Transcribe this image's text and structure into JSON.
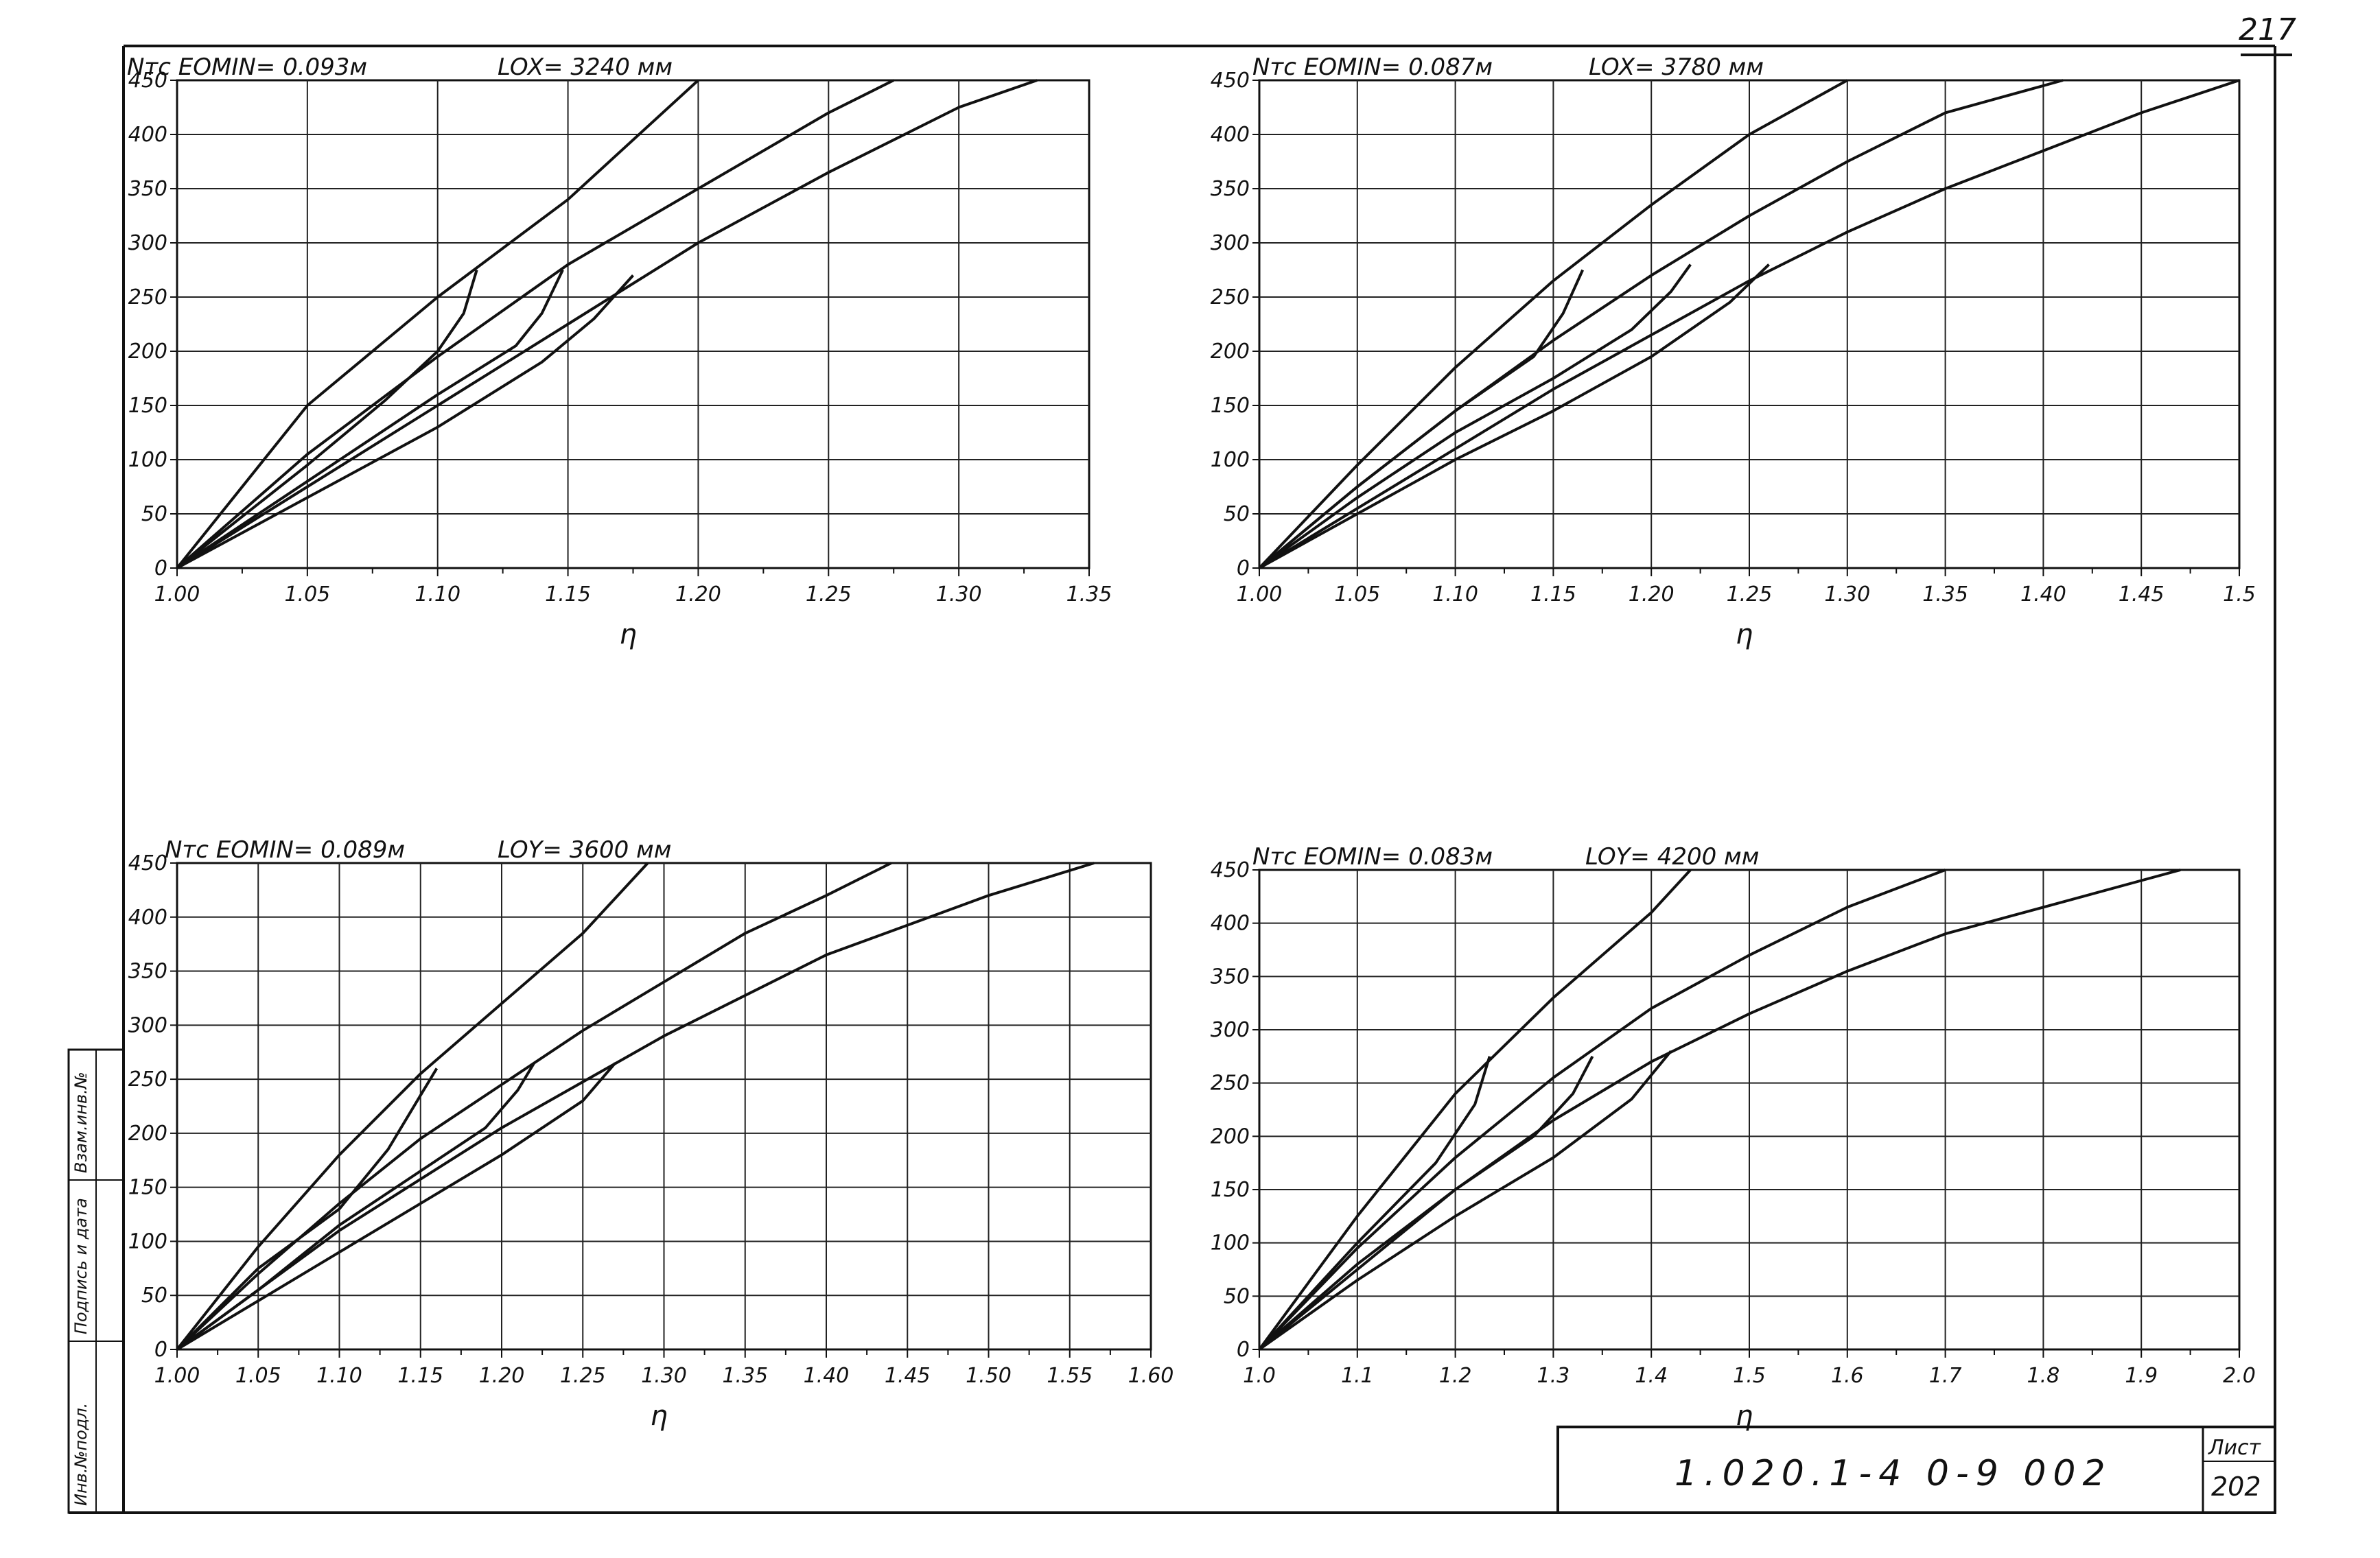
{
  "page_number": "217",
  "stamp": {
    "code": "1.020.1-4   0-9   002",
    "sheet_label": "Лист",
    "sheet_number": "202"
  },
  "side_stamp": {
    "cells": [
      "Инв.№подл.",
      "Подпись и дата",
      "Взам.инв.№"
    ]
  },
  "chart_data": [
    {
      "type": "line",
      "header": {
        "left": "Nтс  EOMIN= 0.093м",
        "right": "LOX= 3240 мм"
      },
      "xlabel": "η",
      "xlim": [
        1.0,
        1.35
      ],
      "ylim": [
        0,
        450
      ],
      "x_ticks": [
        "1.00",
        "1.05",
        "1.10",
        "1.15",
        "1.20",
        "1.25",
        "1.30",
        "1.35"
      ],
      "y_ticks": [
        "0",
        "50",
        "100",
        "150",
        "200",
        "250",
        "300",
        "350",
        "400",
        "450"
      ],
      "grid": true,
      "series": [
        {
          "x": [
            1.0,
            1.05,
            1.1,
            1.15,
            1.2
          ],
          "y": [
            0,
            150,
            250,
            340,
            450
          ]
        },
        {
          "x": [
            1.0,
            1.05,
            1.1,
            1.15,
            1.2,
            1.25,
            1.275
          ],
          "y": [
            0,
            105,
            195,
            280,
            350,
            420,
            450
          ]
        },
        {
          "x": [
            1.0,
            1.05,
            1.1,
            1.15,
            1.2,
            1.25,
            1.3,
            1.33
          ],
          "y": [
            0,
            75,
            150,
            225,
            300,
            365,
            425,
            450
          ]
        },
        {
          "x": [
            1.0,
            1.05,
            1.08,
            1.1,
            1.11,
            1.115
          ],
          "y": [
            0,
            95,
            155,
            200,
            235,
            275
          ]
        },
        {
          "x": [
            1.0,
            1.05,
            1.1,
            1.13,
            1.14,
            1.148
          ],
          "y": [
            0,
            80,
            160,
            205,
            235,
            275
          ]
        },
        {
          "x": [
            1.0,
            1.05,
            1.1,
            1.14,
            1.16,
            1.175
          ],
          "y": [
            0,
            65,
            130,
            190,
            230,
            270
          ]
        }
      ]
    },
    {
      "type": "line",
      "header": {
        "left": "Nтс  EOMIN= 0.087м",
        "right": "LOX= 3780 мм"
      },
      "xlabel": "η",
      "xlim": [
        1.0,
        1.5
      ],
      "ylim": [
        0,
        450
      ],
      "x_ticks": [
        "1.00",
        "1.05",
        "1.10",
        "1.15",
        "1.20",
        "1.25",
        "1.30",
        "1.35",
        "1.40",
        "1.45",
        "1.5"
      ],
      "y_ticks": [
        "0",
        "50",
        "100",
        "150",
        "200",
        "250",
        "300",
        "350",
        "400",
        "450"
      ],
      "grid": true,
      "series": [
        {
          "x": [
            1.0,
            1.05,
            1.1,
            1.15,
            1.2,
            1.25,
            1.3
          ],
          "y": [
            0,
            95,
            185,
            265,
            335,
            400,
            450
          ]
        },
        {
          "x": [
            1.0,
            1.05,
            1.1,
            1.15,
            1.2,
            1.25,
            1.3,
            1.35,
            1.41
          ],
          "y": [
            0,
            75,
            145,
            210,
            270,
            325,
            375,
            420,
            450
          ]
        },
        {
          "x": [
            1.0,
            1.05,
            1.1,
            1.15,
            1.2,
            1.25,
            1.3,
            1.35,
            1.4,
            1.45,
            1.5
          ],
          "y": [
            0,
            55,
            110,
            165,
            215,
            265,
            310,
            350,
            385,
            420,
            450
          ]
        },
        {
          "x": [
            1.0,
            1.05,
            1.1,
            1.14,
            1.155,
            1.165
          ],
          "y": [
            0,
            75,
            145,
            195,
            235,
            275
          ]
        },
        {
          "x": [
            1.0,
            1.05,
            1.1,
            1.15,
            1.19,
            1.21,
            1.22
          ],
          "y": [
            0,
            65,
            125,
            175,
            220,
            255,
            280
          ]
        },
        {
          "x": [
            1.0,
            1.05,
            1.1,
            1.15,
            1.2,
            1.24,
            1.26
          ],
          "y": [
            0,
            50,
            100,
            145,
            195,
            245,
            280
          ]
        }
      ]
    },
    {
      "type": "line",
      "header": {
        "left": "Nтс  EOMIN= 0.089м",
        "right": "LOY= 3600 мм"
      },
      "xlabel": "η",
      "xlim": [
        1.0,
        1.6
      ],
      "ylim": [
        0,
        450
      ],
      "x_ticks": [
        "1.00",
        "1.05",
        "1.10",
        "1.15",
        "1.20",
        "1.25",
        "1.30",
        "1.35",
        "1.40",
        "1.45",
        "1.50",
        "1.55",
        "1.60"
      ],
      "y_ticks": [
        "0",
        "50",
        "100",
        "150",
        "200",
        "250",
        "300",
        "350",
        "400",
        "450"
      ],
      "grid": true,
      "series": [
        {
          "x": [
            1.0,
            1.05,
            1.1,
            1.15,
            1.2,
            1.25,
            1.29
          ],
          "y": [
            0,
            95,
            180,
            255,
            320,
            385,
            450
          ]
        },
        {
          "x": [
            1.0,
            1.05,
            1.1,
            1.15,
            1.2,
            1.25,
            1.3,
            1.35,
            1.4,
            1.44
          ],
          "y": [
            0,
            70,
            135,
            195,
            245,
            295,
            340,
            385,
            420,
            450
          ]
        },
        {
          "x": [
            1.0,
            1.1,
            1.2,
            1.3,
            1.4,
            1.5,
            1.565
          ],
          "y": [
            0,
            110,
            205,
            290,
            365,
            420,
            450
          ]
        },
        {
          "x": [
            1.0,
            1.05,
            1.1,
            1.13,
            1.15,
            1.16
          ],
          "y": [
            0,
            75,
            130,
            185,
            235,
            260
          ]
        },
        {
          "x": [
            1.0,
            1.05,
            1.1,
            1.15,
            1.19,
            1.21,
            1.22
          ],
          "y": [
            0,
            55,
            115,
            165,
            205,
            240,
            265
          ]
        },
        {
          "x": [
            1.0,
            1.05,
            1.1,
            1.15,
            1.2,
            1.25,
            1.27
          ],
          "y": [
            0,
            45,
            90,
            135,
            180,
            230,
            265
          ]
        }
      ]
    },
    {
      "type": "line",
      "header": {
        "left": "Nтс  EOMIN= 0.083м",
        "right": "LOY= 4200 мм"
      },
      "xlabel": "η",
      "xlim": [
        1.0,
        2.0
      ],
      "ylim": [
        0,
        450
      ],
      "x_ticks": [
        "1.0",
        "1.1",
        "1.2",
        "1.3",
        "1.4",
        "1.5",
        "1.6",
        "1.7",
        "1.8",
        "1.9",
        "2.0"
      ],
      "y_ticks": [
        "0",
        "50",
        "100",
        "150",
        "200",
        "250",
        "300",
        "350",
        "400",
        "450"
      ],
      "grid": true,
      "series": [
        {
          "x": [
            1.0,
            1.1,
            1.2,
            1.3,
            1.4,
            1.44
          ],
          "y": [
            0,
            125,
            240,
            330,
            410,
            450
          ]
        },
        {
          "x": [
            1.0,
            1.1,
            1.2,
            1.3,
            1.4,
            1.5,
            1.6,
            1.7
          ],
          "y": [
            0,
            95,
            180,
            255,
            320,
            370,
            415,
            450
          ]
        },
        {
          "x": [
            1.0,
            1.1,
            1.2,
            1.3,
            1.4,
            1.5,
            1.6,
            1.7,
            1.8,
            1.9,
            1.94
          ],
          "y": [
            0,
            75,
            150,
            215,
            270,
            315,
            355,
            390,
            415,
            440,
            450
          ]
        },
        {
          "x": [
            1.0,
            1.1,
            1.18,
            1.22,
            1.235
          ],
          "y": [
            0,
            100,
            175,
            230,
            275
          ]
        },
        {
          "x": [
            1.0,
            1.1,
            1.2,
            1.28,
            1.32,
            1.34
          ],
          "y": [
            0,
            80,
            150,
            200,
            240,
            275
          ]
        },
        {
          "x": [
            1.0,
            1.1,
            1.2,
            1.3,
            1.38,
            1.42
          ],
          "y": [
            0,
            65,
            125,
            180,
            235,
            280
          ]
        }
      ]
    }
  ]
}
